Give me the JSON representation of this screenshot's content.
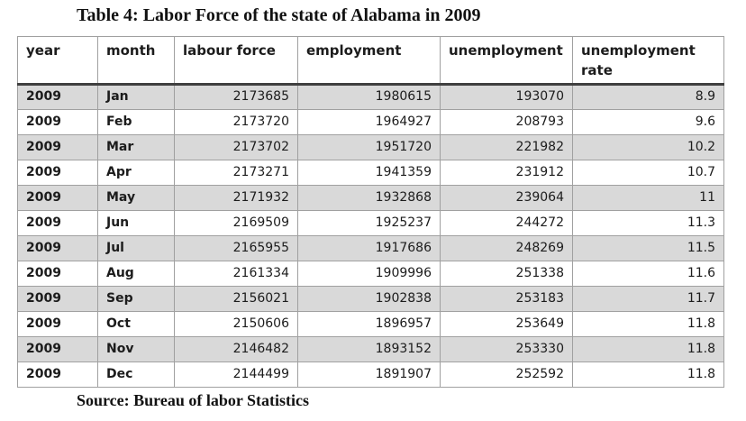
{
  "title": "Table 4: Labor Force of the state of Alabama in 2009",
  "source": "Source: Bureau of labor Statistics",
  "colors": {
    "row_shade": "#d9d9d9",
    "cell_border": "#a0a0a0",
    "header_rule": "#3f3f3f"
  },
  "table": {
    "columns": [
      "year",
      "month",
      "labour force",
      "employment",
      "unemployment",
      "unemployment rate"
    ],
    "rows": [
      [
        "2009",
        "Jan",
        "2173685",
        "1980615",
        "193070",
        "8.9"
      ],
      [
        "2009",
        "Feb",
        "2173720",
        "1964927",
        "208793",
        "9.6"
      ],
      [
        "2009",
        "Mar",
        "2173702",
        "1951720",
        "221982",
        "10.2"
      ],
      [
        "2009",
        "Apr",
        "2173271",
        "1941359",
        "231912",
        "10.7"
      ],
      [
        "2009",
        "May",
        "2171932",
        "1932868",
        "239064",
        "11"
      ],
      [
        "2009",
        "Jun",
        "2169509",
        "1925237",
        "244272",
        "11.3"
      ],
      [
        "2009",
        "Jul",
        "2165955",
        "1917686",
        "248269",
        "11.5"
      ],
      [
        "2009",
        "Aug",
        "2161334",
        "1909996",
        "251338",
        "11.6"
      ],
      [
        "2009",
        "Sep",
        "2156021",
        "1902838",
        "253183",
        "11.7"
      ],
      [
        "2009",
        "Oct",
        "2150606",
        "1896957",
        "253649",
        "11.8"
      ],
      [
        "2009",
        "Nov",
        "2146482",
        "1893152",
        "253330",
        "11.8"
      ],
      [
        "2009",
        "Dec",
        "2144499",
        "1891907",
        "252592",
        "11.8"
      ]
    ]
  }
}
